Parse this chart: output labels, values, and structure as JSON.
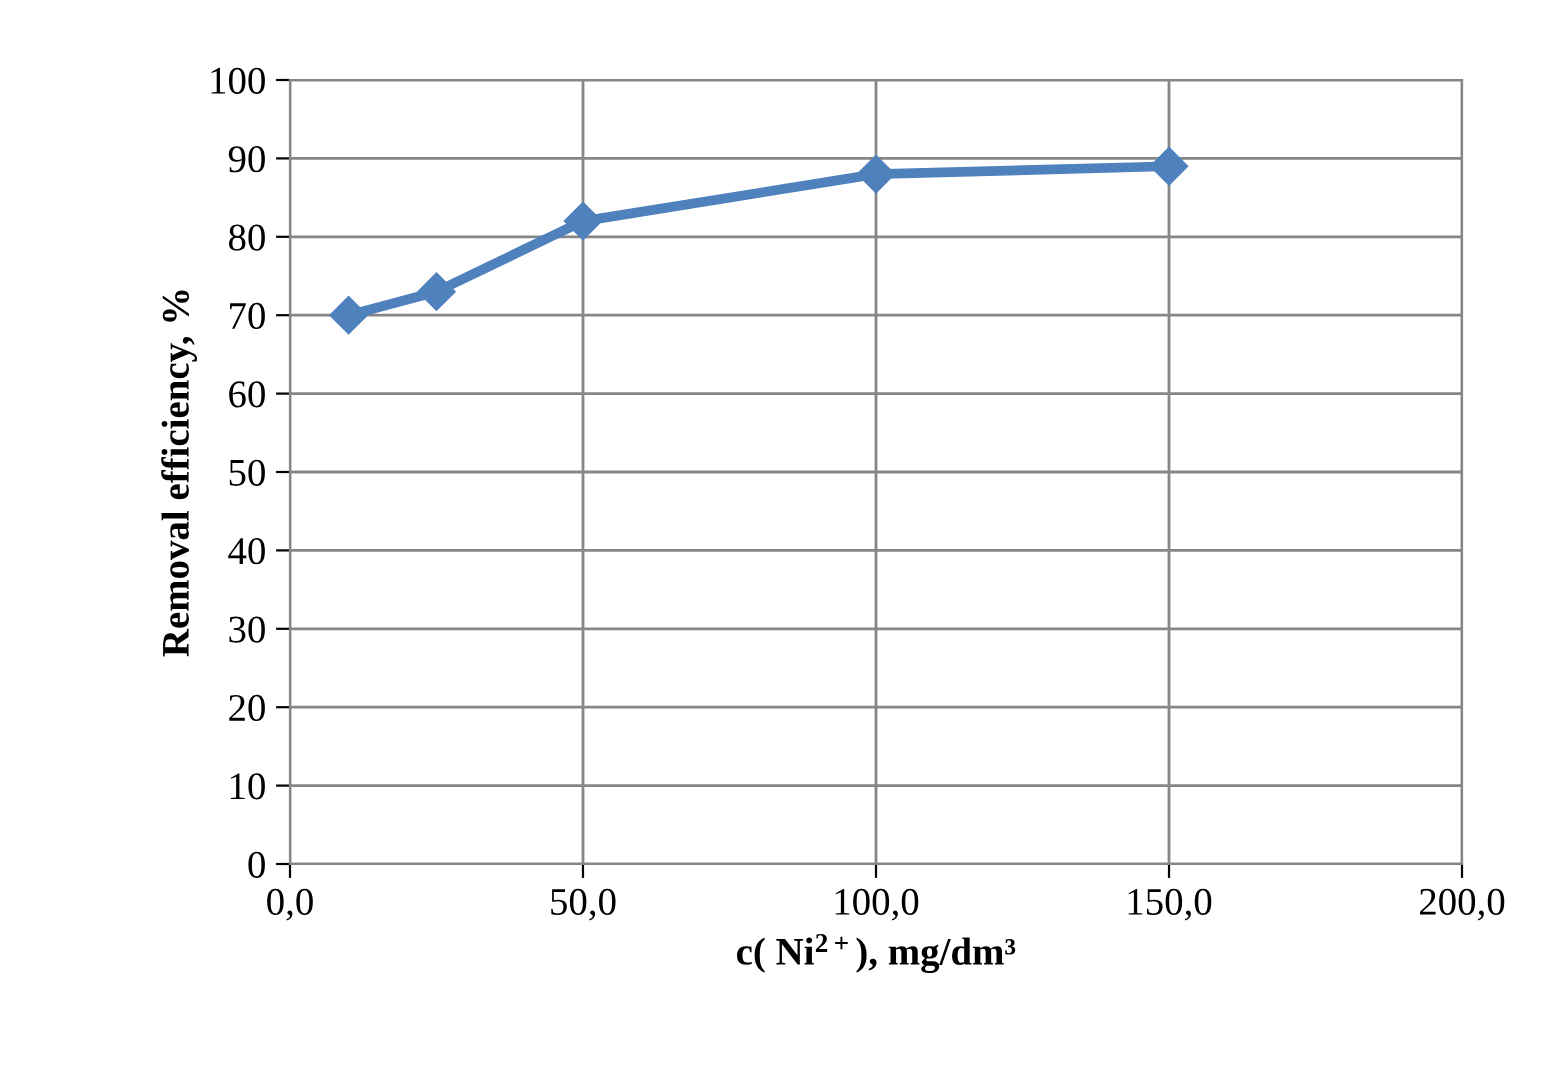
{
  "chart_data": {
    "type": "line",
    "xlabel": "c( Ni$^{2+}$), mg/dm³",
    "ylabel": "Removal efficiency, %",
    "x": [
      10,
      25,
      50,
      100,
      150
    ],
    "series": [
      {
        "color": "#4f81bd",
        "values": [
          70,
          73,
          82,
          88,
          89
        ]
      }
    ],
    "xlim": [
      0,
      200
    ],
    "xticks": [
      {
        "value": 0,
        "label": "0,0"
      },
      {
        "value": 50,
        "label": "50,0"
      },
      {
        "value": 100,
        "label": "100,0"
      },
      {
        "value": 150,
        "label": "150,0"
      },
      {
        "value": 200,
        "label": "200,0"
      }
    ],
    "ylim": [
      0,
      100
    ],
    "yticks": [
      0,
      10,
      20,
      30,
      40,
      50,
      60,
      70,
      80,
      90,
      100
    ],
    "grid": true,
    "marker": "diamond",
    "line_style": "solid"
  }
}
